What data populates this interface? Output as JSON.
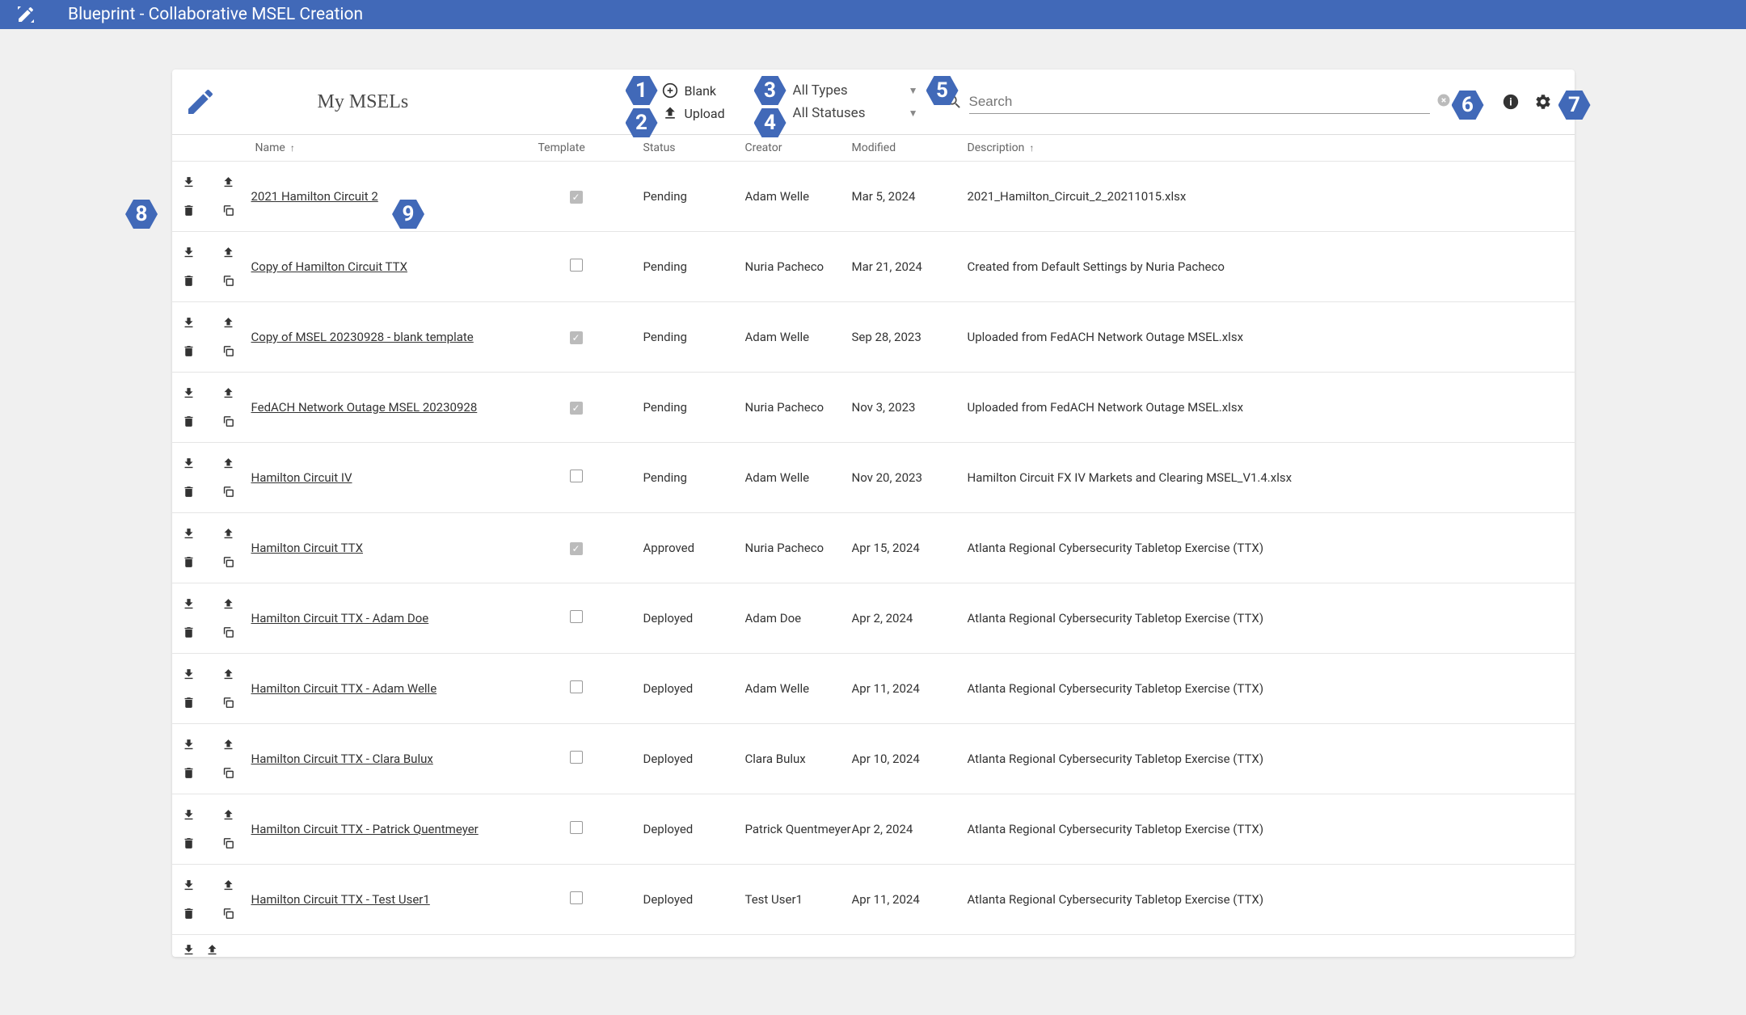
{
  "header": {
    "title": "Blueprint - Collaborative MSEL Creation"
  },
  "page": {
    "title": "My MSELs"
  },
  "actions": {
    "blank": "Blank",
    "upload": "Upload"
  },
  "filters": {
    "types": "All Types",
    "statuses": "All Statuses"
  },
  "search": {
    "placeholder": "Search"
  },
  "columns": {
    "name": "Name",
    "template": "Template",
    "status": "Status",
    "creator": "Creator",
    "modified": "Modified",
    "description": "Description"
  },
  "badges": {
    "b1": "1",
    "b2": "2",
    "b3": "3",
    "b4": "4",
    "b5": "5",
    "b6": "6",
    "b7": "7",
    "b8": "8",
    "b9": "9"
  },
  "rows": [
    {
      "name": "2021 Hamilton Circuit 2",
      "template": true,
      "status": "Pending",
      "creator": "Adam Welle",
      "modified": "Mar 5, 2024",
      "description": "2021_Hamilton_Circuit_2_20211015.xlsx"
    },
    {
      "name": "Copy of Hamilton Circuit TTX",
      "template": false,
      "status": "Pending",
      "creator": "Nuria Pacheco",
      "modified": "Mar 21, 2024",
      "description": "Created from Default Settings by Nuria Pacheco"
    },
    {
      "name": "Copy of MSEL 20230928 - blank template",
      "template": true,
      "status": "Pending",
      "creator": "Adam Welle",
      "modified": "Sep 28, 2023",
      "description": "Uploaded from FedACH Network Outage MSEL.xlsx"
    },
    {
      "name": "FedACH Network Outage MSEL 20230928",
      "template": true,
      "status": "Pending",
      "creator": "Nuria Pacheco",
      "modified": "Nov 3, 2023",
      "description": "Uploaded from FedACH Network Outage MSEL.xlsx"
    },
    {
      "name": "Hamilton Circuit IV",
      "template": false,
      "status": "Pending",
      "creator": "Adam Welle",
      "modified": "Nov 20, 2023",
      "description": "Hamilton Circuit FX IV Markets and Clearing MSEL_V1.4.xlsx"
    },
    {
      "name": "Hamilton Circuit TTX",
      "template": true,
      "status": "Approved",
      "creator": "Nuria Pacheco",
      "modified": "Apr 15, 2024",
      "description": "Atlanta Regional Cybersecurity Tabletop Exercise (TTX)"
    },
    {
      "name": "Hamilton Circuit TTX - Adam Doe",
      "template": false,
      "status": "Deployed",
      "creator": "Adam Doe",
      "modified": "Apr 2, 2024",
      "description": "Atlanta Regional Cybersecurity Tabletop Exercise (TTX)"
    },
    {
      "name": "Hamilton Circuit TTX - Adam Welle",
      "template": false,
      "status": "Deployed",
      "creator": "Adam Welle",
      "modified": "Apr 11, 2024",
      "description": "Atlanta Regional Cybersecurity Tabletop Exercise (TTX)"
    },
    {
      "name": "Hamilton Circuit TTX - Clara Bulux",
      "template": false,
      "status": "Deployed",
      "creator": "Clara Bulux",
      "modified": "Apr 10, 2024",
      "description": "Atlanta Regional Cybersecurity Tabletop Exercise (TTX)"
    },
    {
      "name": "Hamilton Circuit TTX - Patrick Quentmeyer",
      "template": false,
      "status": "Deployed",
      "creator": "Patrick Quentmeyer",
      "modified": "Apr 2, 2024",
      "description": "Atlanta Regional Cybersecurity Tabletop Exercise (TTX)"
    },
    {
      "name": "Hamilton Circuit TTX - Test User1",
      "template": false,
      "status": "Deployed",
      "creator": "Test User1",
      "modified": "Apr 11, 2024",
      "description": "Atlanta Regional Cybersecurity Tabletop Exercise (TTX)"
    }
  ]
}
